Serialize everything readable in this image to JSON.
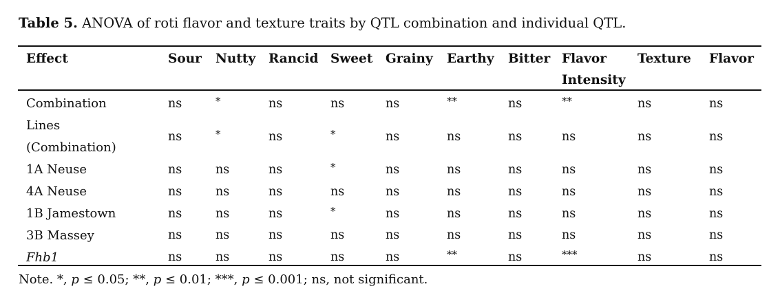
{
  "caption": {
    "label": "Table 5.",
    "text": " ANOVA of roti flavor and texture traits by QTL combination and individual QTL."
  },
  "table": {
    "headers": [
      "Effect",
      "Sour",
      "Nutty",
      "Rancid",
      "Sweet",
      "Grainy",
      "Earthy",
      "Bitter",
      "Flavor",
      "Texture",
      "Flavor"
    ],
    "header_second_line": "Intensity",
    "rows": [
      {
        "label": "Combination",
        "label2": "",
        "italic": false,
        "values": [
          "ns",
          "*",
          "ns",
          "ns",
          "ns",
          "**",
          "ns",
          "**",
          "ns",
          "ns"
        ]
      },
      {
        "label": "Lines",
        "label2": "(Combination)",
        "italic": false,
        "values": [
          "ns",
          "*",
          "ns",
          "*",
          "ns",
          "ns",
          "ns",
          "ns",
          "ns",
          "ns"
        ]
      },
      {
        "label": "1A Neuse",
        "label2": "",
        "italic": false,
        "values": [
          "ns",
          "ns",
          "ns",
          "*",
          "ns",
          "ns",
          "ns",
          "ns",
          "ns",
          "ns"
        ]
      },
      {
        "label": "4A Neuse",
        "label2": "",
        "italic": false,
        "values": [
          "ns",
          "ns",
          "ns",
          "ns",
          "ns",
          "ns",
          "ns",
          "ns",
          "ns",
          "ns"
        ]
      },
      {
        "label": "1B Jamestown",
        "label2": "",
        "italic": false,
        "values": [
          "ns",
          "ns",
          "ns",
          "*",
          "ns",
          "ns",
          "ns",
          "ns",
          "ns",
          "ns"
        ]
      },
      {
        "label": "3B Massey",
        "label2": "",
        "italic": false,
        "values": [
          "ns",
          "ns",
          "ns",
          "ns",
          "ns",
          "ns",
          "ns",
          "ns",
          "ns",
          "ns"
        ]
      },
      {
        "label": "Fhb1",
        "label2": "",
        "italic": true,
        "values": [
          "ns",
          "ns",
          "ns",
          "ns",
          "ns",
          "**",
          "ns",
          "***",
          "ns",
          "ns"
        ]
      }
    ]
  },
  "note": {
    "parts": [
      "Note. *, ",
      "p",
      " ≤ 0.05; **, ",
      "p",
      " ≤ 0.01; ***, ",
      "p",
      " ≤ 0.001; ns, not significant."
    ]
  }
}
